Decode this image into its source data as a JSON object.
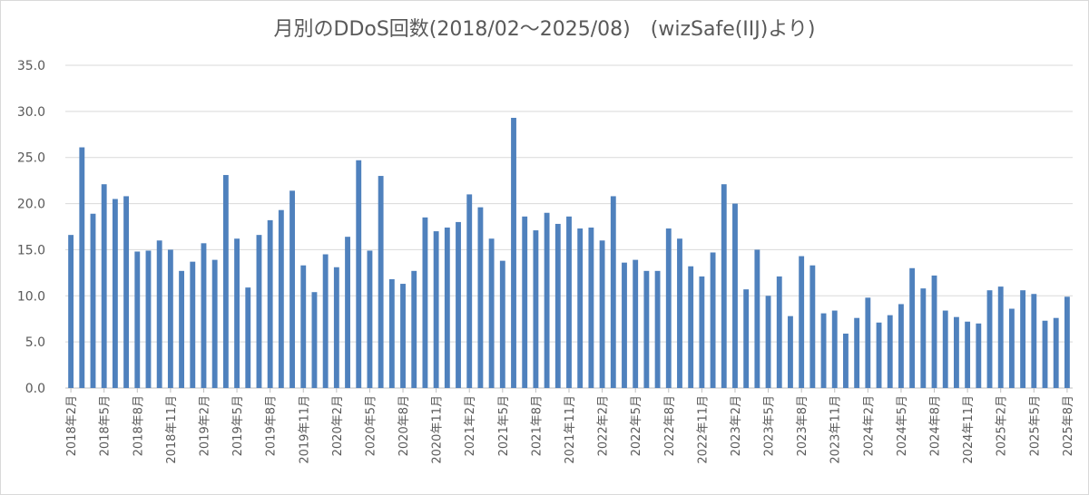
{
  "chart_data": {
    "type": "bar",
    "title": "月別のDDoS回数(2018/02～2025/08)　(wizSafe(IIJ)より)",
    "xlabel": "",
    "ylabel": "",
    "ylim": [
      0,
      35
    ],
    "yticks": [
      "0.0",
      "5.0",
      "10.0",
      "15.0",
      "20.0",
      "25.0",
      "30.0",
      "35.0"
    ],
    "grid": true,
    "color": "#4f81bd",
    "categories": [
      "2018年2月",
      "2018年3月",
      "2018年4月",
      "2018年5月",
      "2018年6月",
      "2018年7月",
      "2018年8月",
      "2018年9月",
      "2018年10月",
      "2018年11月",
      "2018年12月",
      "2019年1月",
      "2019年2月",
      "2019年3月",
      "2019年4月",
      "2019年5月",
      "2019年6月",
      "2019年7月",
      "2019年8月",
      "2019年9月",
      "2019年10月",
      "2019年11月",
      "2019年12月",
      "2020年1月",
      "2020年2月",
      "2020年3月",
      "2020年4月",
      "2020年5月",
      "2020年6月",
      "2020年7月",
      "2020年8月",
      "2020年9月",
      "2020年10月",
      "2020年11月",
      "2020年12月",
      "2021年1月",
      "2021年2月",
      "2021年3月",
      "2021年4月",
      "2021年5月",
      "2021年6月",
      "2021年7月",
      "2021年8月",
      "2021年9月",
      "2021年10月",
      "2021年11月",
      "2021年12月",
      "2022年1月",
      "2022年2月",
      "2022年3月",
      "2022年4月",
      "2022年5月",
      "2022年6月",
      "2022年7月",
      "2022年8月",
      "2022年9月",
      "2022年10月",
      "2022年11月",
      "2022年12月",
      "2023年1月",
      "2023年2月",
      "2023年3月",
      "2023年4月",
      "2023年5月",
      "2023年6月",
      "2023年7月",
      "2023年8月",
      "2023年9月",
      "2023年10月",
      "2023年11月",
      "2023年12月",
      "2024年1月",
      "2024年2月",
      "2024年3月",
      "2024年4月",
      "2024年5月",
      "2024年6月",
      "2024年7月",
      "2024年8月",
      "2024年9月",
      "2024年10月",
      "2024年11月",
      "2024年12月",
      "2025年1月",
      "2025年2月",
      "2025年3月",
      "2025年4月",
      "2025年5月",
      "2025年6月",
      "2025年7月",
      "2025年8月"
    ],
    "tick_labels": [
      "2018年2月",
      "2018年5月",
      "2018年8月",
      "2018年11月",
      "2019年2月",
      "2019年5月",
      "2019年8月",
      "2019年11月",
      "2020年2月",
      "2020年5月",
      "2020年8月",
      "2020年11月",
      "2021年2月",
      "2021年5月",
      "2021年8月",
      "2021年11月",
      "2022年2月",
      "2022年5月",
      "2022年8月",
      "2022年11月",
      "2023年2月",
      "2023年5月",
      "2023年8月",
      "2023年11月",
      "2024年2月",
      "2024年5月",
      "2024年8月",
      "2024年11月",
      "2025年2月",
      "2025年5月",
      "2025年8月"
    ],
    "values": [
      16.6,
      26.1,
      18.9,
      22.1,
      20.5,
      20.8,
      14.8,
      14.9,
      16.0,
      15.0,
      12.7,
      13.7,
      15.7,
      13.9,
      23.1,
      16.2,
      10.9,
      16.6,
      18.2,
      19.3,
      21.4,
      13.3,
      10.4,
      14.5,
      13.1,
      16.4,
      24.7,
      14.9,
      23.0,
      11.8,
      11.3,
      12.7,
      18.5,
      17.0,
      17.4,
      18.0,
      21.0,
      19.6,
      16.2,
      13.8,
      29.3,
      18.6,
      17.1,
      19.0,
      17.8,
      18.6,
      17.3,
      17.4,
      16.0,
      20.8,
      13.6,
      13.9,
      12.7,
      12.7,
      17.3,
      16.2,
      13.2,
      12.1,
      14.7,
      22.1,
      20.0,
      10.7,
      15.0,
      10.0,
      12.1,
      7.8,
      14.3,
      13.3,
      8.1,
      8.4,
      5.9,
      7.6,
      9.8,
      7.1,
      7.9,
      9.1,
      13.0,
      10.8,
      12.2,
      8.4,
      7.7,
      7.2,
      7.0,
      10.6,
      11.0,
      8.6,
      10.6,
      10.2,
      7.3,
      7.6,
      9.9
    ]
  }
}
